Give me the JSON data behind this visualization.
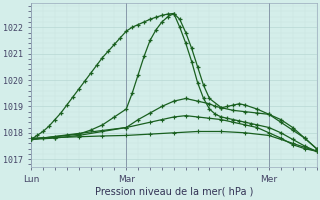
{
  "xlabel": "Pression niveau de la mer( hPa )",
  "bg_color": "#d4eeea",
  "grid_color_major": "#b8d8d4",
  "grid_color_minor": "#c8e4e0",
  "line_color": "#1a6020",
  "ylim": [
    1016.7,
    1022.9
  ],
  "xlim": [
    0,
    48
  ],
  "xtick_positions": [
    0,
    16,
    40
  ],
  "xtick_labels": [
    "Lun",
    "Mar",
    "Mer"
  ],
  "ytick_positions": [
    1017,
    1018,
    1019,
    1020,
    1021,
    1022
  ],
  "ytick_labels": [
    "1017",
    "1018",
    "1019",
    "1020",
    "1021",
    "1022"
  ],
  "line1_x": [
    0,
    1,
    2,
    3,
    4,
    5,
    6,
    7,
    8,
    9,
    10,
    11,
    12,
    13,
    14,
    15,
    16,
    17,
    18,
    19,
    20,
    21,
    22,
    23,
    24,
    25,
    26,
    27,
    28,
    29,
    30,
    31,
    32,
    33,
    34,
    35,
    36,
    37,
    38,
    40,
    42,
    44,
    46,
    48
  ],
  "line1_y": [
    1017.75,
    1017.9,
    1018.05,
    1018.25,
    1018.5,
    1018.75,
    1019.05,
    1019.35,
    1019.65,
    1019.95,
    1020.25,
    1020.55,
    1020.85,
    1021.1,
    1021.35,
    1021.6,
    1021.85,
    1022.0,
    1022.1,
    1022.2,
    1022.3,
    1022.38,
    1022.45,
    1022.5,
    1022.52,
    1022.0,
    1021.4,
    1020.7,
    1019.9,
    1019.3,
    1018.9,
    1018.7,
    1018.6,
    1018.55,
    1018.5,
    1018.45,
    1018.4,
    1018.35,
    1018.3,
    1018.2,
    1018.0,
    1017.75,
    1017.5,
    1017.3
  ],
  "line2_x": [
    0,
    2,
    4,
    6,
    8,
    10,
    12,
    14,
    16,
    17,
    18,
    19,
    20,
    21,
    22,
    23,
    24,
    25,
    26,
    27,
    28,
    29,
    30,
    32,
    34,
    36,
    38,
    40,
    42,
    44,
    46,
    48
  ],
  "line2_y": [
    1017.75,
    1017.8,
    1017.85,
    1017.9,
    1017.95,
    1018.1,
    1018.3,
    1018.6,
    1018.9,
    1019.5,
    1020.2,
    1020.9,
    1021.5,
    1021.9,
    1022.2,
    1022.4,
    1022.52,
    1022.3,
    1021.8,
    1021.2,
    1020.5,
    1019.8,
    1019.3,
    1018.95,
    1018.85,
    1018.8,
    1018.75,
    1018.7,
    1018.5,
    1018.2,
    1017.8,
    1017.4
  ],
  "line3_x": [
    0,
    4,
    8,
    12,
    16,
    18,
    20,
    22,
    24,
    26,
    28,
    30,
    31,
    32,
    33,
    34,
    35,
    36,
    38,
    40,
    42,
    44,
    46,
    48
  ],
  "line3_y": [
    1017.75,
    1017.8,
    1017.9,
    1018.05,
    1018.2,
    1018.5,
    1018.75,
    1019.0,
    1019.2,
    1019.3,
    1019.2,
    1019.1,
    1019.0,
    1018.95,
    1019.0,
    1019.05,
    1019.1,
    1019.05,
    1018.9,
    1018.7,
    1018.4,
    1018.1,
    1017.8,
    1017.4
  ],
  "line4_x": [
    0,
    4,
    8,
    12,
    16,
    20,
    24,
    28,
    32,
    36,
    40,
    44,
    48
  ],
  "line4_y": [
    1017.8,
    1017.82,
    1017.85,
    1017.88,
    1017.9,
    1017.95,
    1018.0,
    1018.05,
    1018.05,
    1018.0,
    1017.9,
    1017.6,
    1017.3
  ],
  "line5_x": [
    0,
    16,
    20,
    22,
    24,
    26,
    28,
    30,
    32,
    34,
    36,
    38,
    40,
    42,
    44,
    46,
    48
  ],
  "line5_y": [
    1017.75,
    1018.2,
    1018.4,
    1018.5,
    1018.6,
    1018.65,
    1018.6,
    1018.55,
    1018.5,
    1018.4,
    1018.3,
    1018.2,
    1018.0,
    1017.8,
    1017.55,
    1017.4,
    1017.3
  ]
}
